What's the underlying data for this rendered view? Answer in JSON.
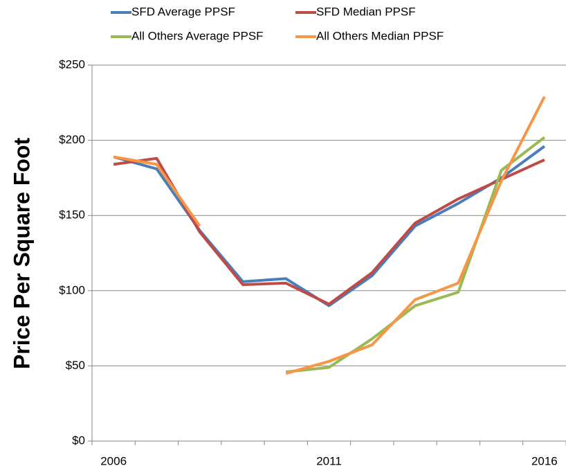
{
  "chart_data": {
    "type": "line",
    "y_label": "Price Per Square Foot",
    "categories": [
      "2006",
      null,
      null,
      null,
      null,
      "2011",
      null,
      null,
      null,
      null,
      "2016"
    ],
    "series": [
      {
        "name": "SFD Average PPSF",
        "color": "#4a7ebb",
        "values": [
          189,
          181,
          140,
          106,
          108,
          90,
          110,
          143,
          158,
          175,
          196
        ]
      },
      {
        "name": "SFD Median PPSF",
        "color": "#be4b48",
        "values": [
          184,
          188,
          139,
          104,
          105,
          91,
          112,
          145,
          161,
          174,
          187
        ]
      },
      {
        "name": "All Others Average PPSF",
        "color": "#98b954",
        "values": [
          null,
          null,
          null,
          null,
          46,
          49,
          68,
          90,
          99,
          180,
          202
        ]
      },
      {
        "name": "All Others Median PPSF",
        "color": "#f79646",
        "values": [
          189,
          184,
          143,
          null,
          45,
          53,
          64,
          94,
          105,
          173,
          229
        ]
      }
    ],
    "ylim": [
      0,
      250
    ],
    "yticks": [
      {
        "value": 0,
        "label": "$0"
      },
      {
        "value": 50,
        "label": "$50"
      },
      {
        "value": 100,
        "label": "$100"
      },
      {
        "value": 150,
        "label": "$150"
      },
      {
        "value": 200,
        "label": "$200"
      },
      {
        "value": 250,
        "label": "$250"
      }
    ],
    "grid": true
  }
}
